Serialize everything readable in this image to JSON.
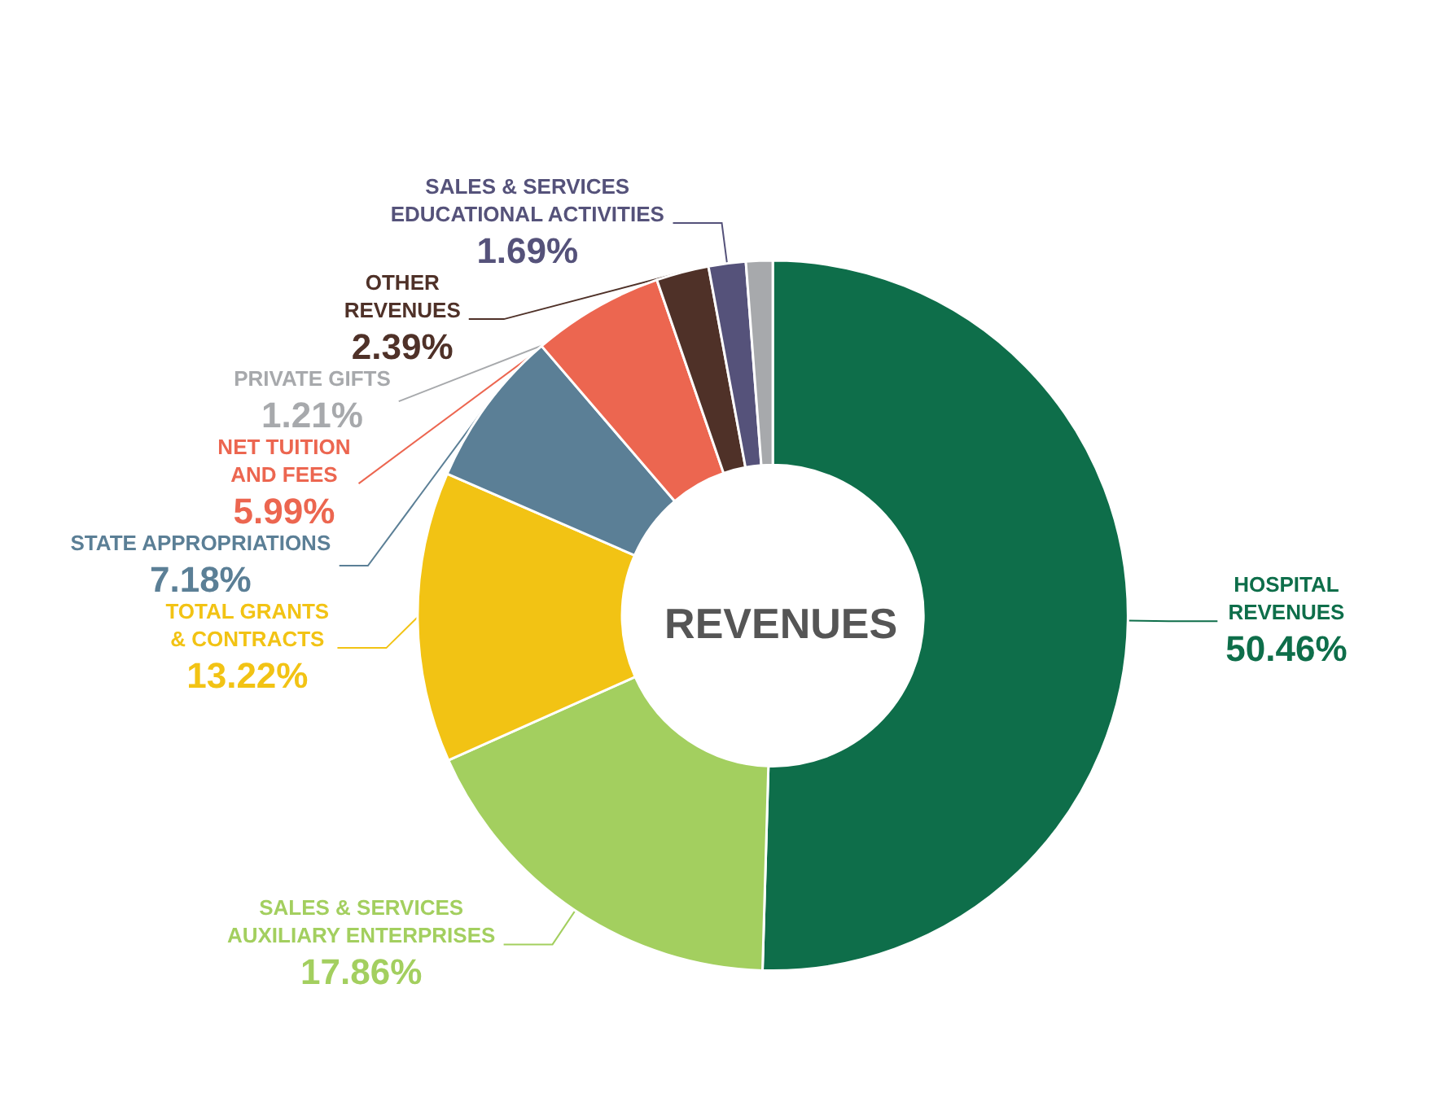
{
  "chart_data": {
    "type": "donut",
    "title": "REVENUES",
    "categories": [
      "HOSPITAL\nREVENUES",
      "SALES & SERVICES\nAUXILIARY ENTERPRISES",
      "TOTAL GRANTS\n& CONTRACTS",
      "STATE APPROPRIATIONS",
      "NET TUITION\nAND FEES",
      "OTHER\nREVENUES",
      "SALES & SERVICES\nEDUCATIONAL ACTIVITIES",
      "PRIVATE GIFTS"
    ],
    "values": [
      50.46,
      17.86,
      13.22,
      7.18,
      5.99,
      2.39,
      1.69,
      1.21
    ],
    "value_labels": [
      "50.46%",
      "17.86%",
      "13.22%",
      "7.18%",
      "5.99%",
      "2.39%",
      "1.69%",
      "1.21%"
    ],
    "colors": [
      "#0e6e4a",
      "#a3cf5f",
      "#f2c314",
      "#5b7f96",
      "#ec6650",
      "#4f3128",
      "#55527a",
      "#a7a9ac"
    ],
    "legend": false
  }
}
